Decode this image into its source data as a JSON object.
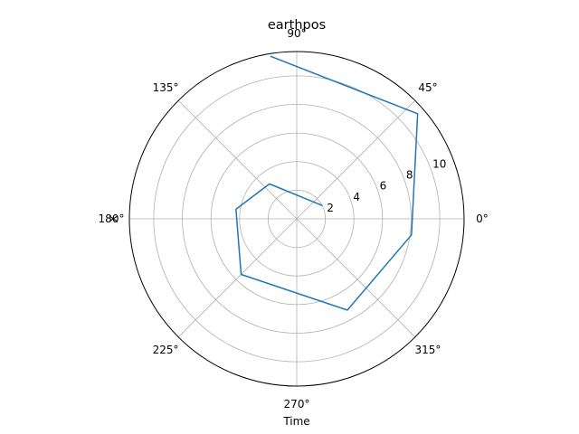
{
  "chart_data": {
    "type": "line",
    "projection": "polar",
    "title": "earthpos",
    "xlabel": "Time",
    "ylabel": "X",
    "theta_unit": "degrees",
    "theta_tick_labels": [
      "0°",
      "45°",
      "90°",
      "135°",
      "180°",
      "225°",
      "270°",
      "315°"
    ],
    "r_tick_labels": [
      "2",
      "4",
      "6",
      "8",
      "10"
    ],
    "rlim": [
      0,
      11.7
    ],
    "grid": true,
    "series": [
      {
        "color": "#1f77b4",
        "points": [
          {
            "theta": 99,
            "r": 11.5
          },
          {
            "theta": 41,
            "r": 11.2
          },
          {
            "theta": -8,
            "r": 8.1
          },
          {
            "theta": -61,
            "r": 7.3
          },
          {
            "theta": -135,
            "r": 5.5
          },
          {
            "theta": 171,
            "r": 4.3
          },
          {
            "theta": 128,
            "r": 3.1
          },
          {
            "theta": 28,
            "r": 2.0
          }
        ]
      }
    ]
  }
}
